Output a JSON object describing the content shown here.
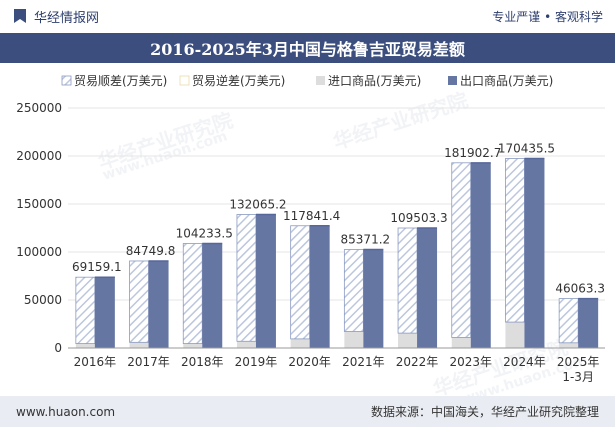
{
  "header": {
    "site_name": "华经情报网",
    "tagline": "专业严谨 • 客观科学"
  },
  "chart_title": "2016-2025年3月中国与格鲁吉亚贸易差额",
  "footer": {
    "website": "www.huaon.com",
    "source": "数据来源：中国海关，华经产业研究院整理"
  },
  "watermarks": [
    "华经产业研究院",
    "www.huaon.com"
  ],
  "colors": {
    "export": "#6676a3",
    "export_dark": "#56679a",
    "import": "#dddddd",
    "surplus_stroke": "#8a9ac0",
    "surplus_hatch": "#bcc6dd",
    "title_bg": "#3b4e7e"
  },
  "chart_data": {
    "type": "bar",
    "title": "2016-2025年3月中国与格鲁吉亚贸易差额",
    "categories": [
      "2016年",
      "2017年",
      "2018年",
      "2019年",
      "2020年",
      "2021年",
      "2022年",
      "2023年",
      "2024年",
      "2025年\n1-3月"
    ],
    "series": [
      {
        "name": "贸易顺差(万美元)",
        "values": [
          69159.1,
          84749.8,
          104233.5,
          132065.2,
          117841.4,
          85371.2,
          109503.3,
          181902.7,
          170435.5,
          46063.3
        ]
      },
      {
        "name": "贸易逆差(万美元)",
        "values": [
          0,
          0,
          0,
          0,
          0,
          0,
          0,
          0,
          0,
          0
        ]
      },
      {
        "name": "进口商品(万美元)",
        "values": [
          4600,
          5900,
          4600,
          7000,
          9500,
          17200,
          15500,
          11000,
          27000,
          5400
        ]
      },
      {
        "name": "出口商品(万美元)",
        "values": [
          73759.1,
          90649.8,
          108833.5,
          139065.2,
          127341.4,
          102571.2,
          125003.3,
          192902.7,
          197435.5,
          51463.3
        ]
      }
    ],
    "data_labels": [
      "69159.1",
      "84749.8",
      "104233.5",
      "132065.2",
      "117841.4",
      "85371.2",
      "109503.3",
      "181902.7",
      "170435.5",
      "46063.3"
    ],
    "ylim": [
      0,
      250000
    ],
    "yticks": [
      0,
      50000,
      100000,
      150000,
      200000,
      250000
    ],
    "grid": true,
    "legend_position": "top"
  }
}
